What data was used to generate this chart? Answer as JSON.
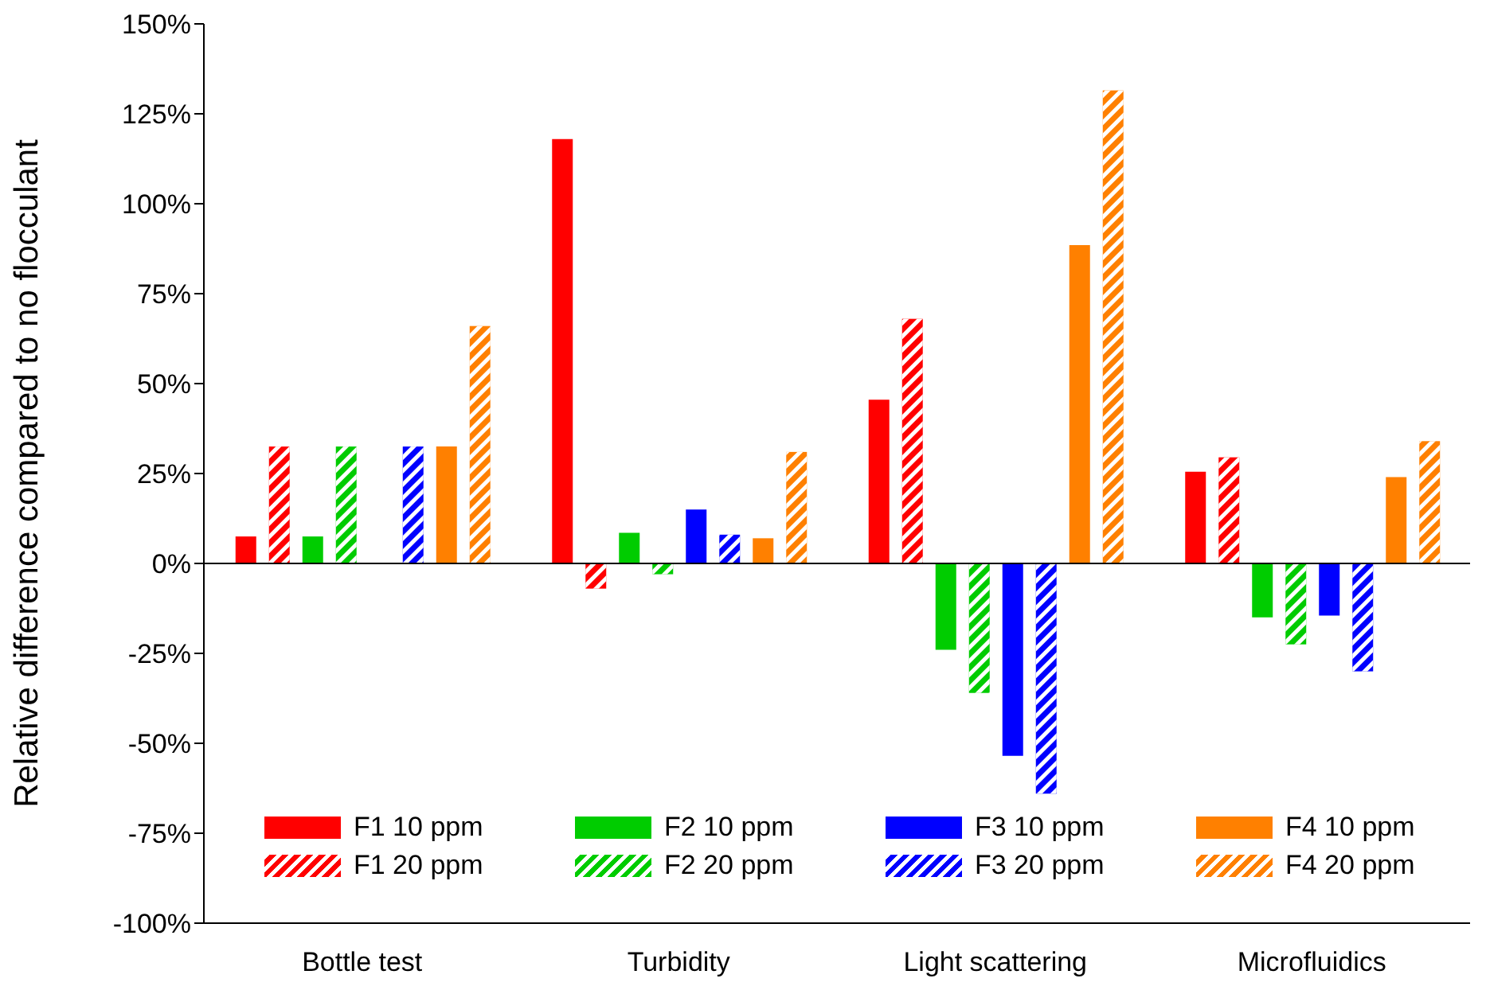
{
  "chart_data": {
    "type": "bar",
    "ylabel": "Relative difference compared to no flocculant",
    "categories": [
      "Bottle test",
      "Turbidity",
      "Light scattering",
      "Microfluidics"
    ],
    "series": [
      {
        "name": "F1 10 ppm",
        "color": "#ff0000",
        "values": [
          7.5,
          118,
          45.5,
          25.5
        ]
      },
      {
        "name": "F1 20 ppm",
        "color": "#ff0000",
        "values": [
          32.5,
          -7,
          68,
          29.5
        ]
      },
      {
        "name": "F2 10 ppm",
        "color": "#00cc00",
        "values": [
          7.5,
          8.5,
          -24,
          -15
        ]
      },
      {
        "name": "F2 20 ppm",
        "color": "#00cc00",
        "values": [
          32.5,
          -3,
          -36,
          -22.5
        ]
      },
      {
        "name": "F3 10 ppm",
        "color": "#0000ff",
        "values": [
          null,
          15,
          -53.5,
          -14.5
        ]
      },
      {
        "name": "F3 20 ppm",
        "color": "#0000ff",
        "values": [
          32.5,
          8,
          -64,
          -30
        ]
      },
      {
        "name": "F4 10 ppm",
        "color": "#ff8000",
        "values": [
          32.5,
          7,
          88.5,
          24
        ]
      },
      {
        "name": "F4 20 ppm",
        "color": "#ff8000",
        "values": [
          66,
          31,
          131.5,
          34
        ]
      }
    ],
    "ylim": [
      -100,
      150
    ],
    "yticks": [
      {
        "value": -100,
        "label": "-100%"
      },
      {
        "value": -75,
        "label": "-75%"
      },
      {
        "value": -50,
        "label": "-50%"
      },
      {
        "value": -25,
        "label": "-25%"
      },
      {
        "value": 0,
        "label": "0%"
      },
      {
        "value": 25,
        "label": "25%"
      },
      {
        "value": 50,
        "label": "50%"
      },
      {
        "value": 75,
        "label": "75%"
      },
      {
        "value": 100,
        "label": "100%"
      },
      {
        "value": 125,
        "label": "125%"
      },
      {
        "value": 150,
        "label": "150%"
      }
    ],
    "ref_lines": [
      {
        "axis": "y",
        "value": 0,
        "label": null,
        "color": "#000000"
      }
    ],
    "grid": false,
    "legend": "bottom"
  }
}
